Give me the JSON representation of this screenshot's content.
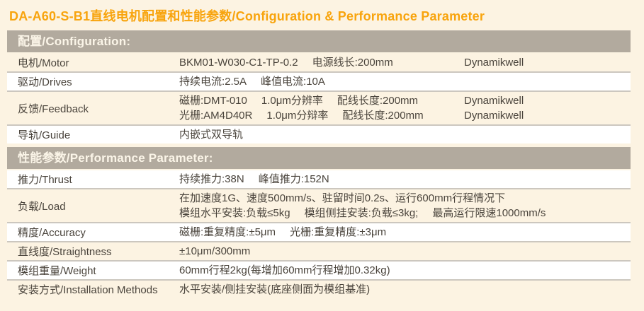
{
  "page": {
    "title": "DA-A60-S-B1直线电机配置和性能参数/Configuration & Performance Parameter"
  },
  "colors": {
    "accent_orange": "#F8A40D",
    "section_header_bar": "#B2AA9E",
    "page_background": "#FCF3E2",
    "row_white": "#FFFFFF",
    "divider_gray": "#CCC7BF",
    "body_text": "#4A443C",
    "header_text": "#FBF5E8"
  },
  "sections": [
    {
      "name": "configuration",
      "title": "配置/Configuration:",
      "rows": [
        {
          "label": "电机/Motor",
          "lines": [
            {
              "segs": [
                "BKM01-W030-C1-TP-0.2",
                "电源线长:200mm"
              ],
              "brand": "Dynamikwell"
            }
          ]
        },
        {
          "label": "驱动/Drives",
          "lines": [
            {
              "segs": [
                "持续电流:2.5A",
                "峰值电流:10A"
              ]
            }
          ]
        },
        {
          "label": "反馈/Feedback",
          "lines": [
            {
              "segs": [
                "磁栅:DMT-010",
                "1.0μm分辨率",
                "配线长度:200mm"
              ],
              "brand": "Dynamikwell"
            },
            {
              "segs": [
                "光栅:AM4D40R",
                "1.0μm分辩率",
                "配线长度:200mm"
              ],
              "brand": "Dynamikwell"
            }
          ]
        },
        {
          "label": "导轨/Guide",
          "lines": [
            {
              "segs": [
                "内嵌式双导轨"
              ]
            }
          ]
        }
      ]
    },
    {
      "name": "performance",
      "title": "性能参数/Performance Parameter:",
      "rows": [
        {
          "label": "推力/Thrust",
          "lines": [
            {
              "segs": [
                "持续推力:38N",
                "峰值推力:152N"
              ]
            }
          ]
        },
        {
          "label": "负载/Load",
          "lines": [
            {
              "segs": [
                "在加速度1G、速度500mm/s、驻留时间0.2s、运行600mm行程情况下"
              ]
            },
            {
              "segs": [
                "模组水平安装:负载≤5kg",
                "模组侧挂安装:负载≤3kg;",
                "最高运行限速1000mm/s"
              ]
            }
          ]
        },
        {
          "label": "精度/Accuracy",
          "lines": [
            {
              "segs": [
                "磁栅:重复精度:±5μm",
                "光栅:重复精度:±3μm"
              ]
            }
          ]
        },
        {
          "label": "直线度/Straightness",
          "lines": [
            {
              "segs": [
                "±10μm/300mm"
              ]
            }
          ]
        },
        {
          "label": "模组重量/Weight",
          "lines": [
            {
              "segs": [
                "60mm行程2kg(每增加60mm行程增加0.32kg)"
              ]
            }
          ]
        },
        {
          "label": "安装方式/Installation Methods",
          "lines": [
            {
              "segs": [
                "水平安装/侧挂安装(底座侧面为模组基准)"
              ]
            }
          ]
        }
      ]
    }
  ]
}
